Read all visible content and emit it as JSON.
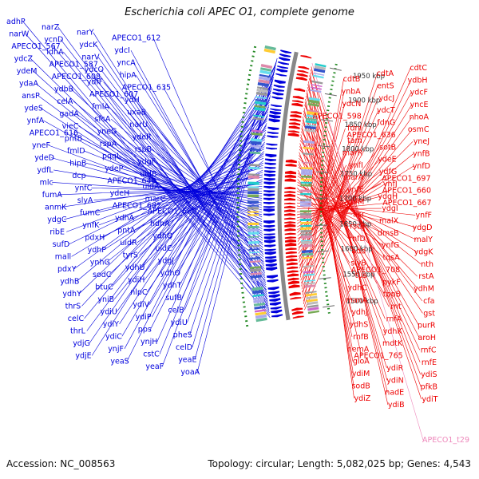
{
  "title": "Escherichia coli APEC O1, complete genome",
  "footer": {
    "accession": "Accession: NC_008563",
    "summary": "Topology: circular; Length: 5,082,025 bp; Genes: 4,543"
  },
  "colors": {
    "forward_genes": "#0000dd",
    "reverse_genes": "#ee0000",
    "rna_gene": "#ee88bb",
    "backbone": "#888888",
    "tick_marks": "#228822"
  },
  "kbp_ticks": [
    "1500 kbp",
    "1550 kbp",
    "1600 kbp",
    "1650 kbp",
    "1700 kbp",
    "1750 kbp",
    "1800 kbp",
    "1850 kbp",
    "1900 kbp",
    "1950 kbp"
  ],
  "forward_labels": [
    "adhP",
    "narZ",
    "narY",
    "APECO1_612",
    "narW",
    "ycnD",
    "ydcK",
    "ydcI",
    "APECO1_567",
    "ldhA",
    "narV",
    "yncA",
    "ydcZ",
    "APECO1_587",
    "ydcO",
    "hipA",
    "ydeM",
    "APECO1_608",
    "ydfF",
    "APECO1_635",
    "ydaA",
    "ydbB",
    "APECO1_607",
    "ydH",
    "ansP",
    "celA",
    "fmlA",
    "uxaB",
    "ydeS",
    "gadA",
    "sfcA",
    "narU",
    "ynfA",
    "vieC",
    "yneG",
    "ydeR",
    "APECO1_616",
    "pntB",
    "rspA",
    "rspB",
    "yneF",
    "fmlD",
    "pqqL",
    "ydgF",
    "ydeD",
    "hipB",
    "ydeP",
    "uidB",
    "ydfL",
    "dcp",
    "APECO1_640",
    "uidA",
    "mlc",
    "ynfC",
    "ydeH",
    "marC",
    "fumA",
    "slyA",
    "APECO1_682",
    "APECO1_662",
    "anmK",
    "fumC",
    "ydhA",
    "hdhA",
    "ydgC",
    "ynfK",
    "pntA",
    "ydhQ",
    "ribE",
    "pdxH",
    "uidR",
    "uidC",
    "sufD",
    "ydhP",
    "tyrS",
    "ydgJ",
    "mall",
    "ynhG",
    "ydhU",
    "ydhO",
    "pdxY",
    "sodC",
    "ydiH",
    "ydhT",
    "ydhB",
    "btuC",
    "nlpC",
    "sufB",
    "ydhY",
    "yniB",
    "ydiV",
    "celB",
    "thrS",
    "ydiU",
    "ydiP",
    "ydiU",
    "celC",
    "ydiY",
    "pps",
    "pheS",
    "thrL",
    "ydiC",
    "ynjH",
    "celD",
    "ydjG",
    "ynjF",
    "cstC",
    "yeaE",
    "ydjE",
    "yeaS",
    "yeaF",
    "yoaA"
  ],
  "reverse_labels": [
    "cdtC",
    "cdtA",
    "cdtB",
    "ydbH",
    "entS",
    "ynbA",
    "ydcF",
    "ydcJ",
    "ydcN",
    "yncE",
    "ydcT",
    "APECO1_598",
    "nhoA",
    "fdnG",
    "fdnI",
    "osmC",
    "APECO1_636",
    "tam",
    "yneJ",
    "sotB",
    "marR",
    "ynfB",
    "ydeE",
    "ynfI",
    "ynfD",
    "ydfG",
    "marA",
    "APECO1_697",
    "ynfJ",
    "ynfE",
    "APECO1_660",
    "ydgH",
    "ynfM",
    "APECO1_667",
    "ydgI",
    "asr",
    "ynfF",
    "malX",
    "rstB",
    "ydgD",
    "dmsB",
    "rnfD",
    "malY",
    "ynfG",
    "add",
    "ydgK",
    "tqsA",
    "slyB",
    "nth",
    "APECO1_708",
    "tus",
    "rstA",
    "pykF",
    "ydhC",
    "ydhM",
    "tppB",
    "manA",
    "cfa",
    "rnt",
    "ydhJ",
    "gst",
    "rnfA",
    "ydhS",
    "purR",
    "ydhK",
    "rnfB",
    "aroH",
    "mdtK",
    "nemA",
    "rnfC",
    "APECO1_765",
    "gloA",
    "rnfE",
    "ydiR",
    "ydiM",
    "ydiS",
    "ydiN",
    "sodB",
    "pfkB",
    "nadE",
    "ydiZ",
    "ydiT",
    "ydiB"
  ],
  "rna_labels": [
    "APECO1_t29"
  ]
}
